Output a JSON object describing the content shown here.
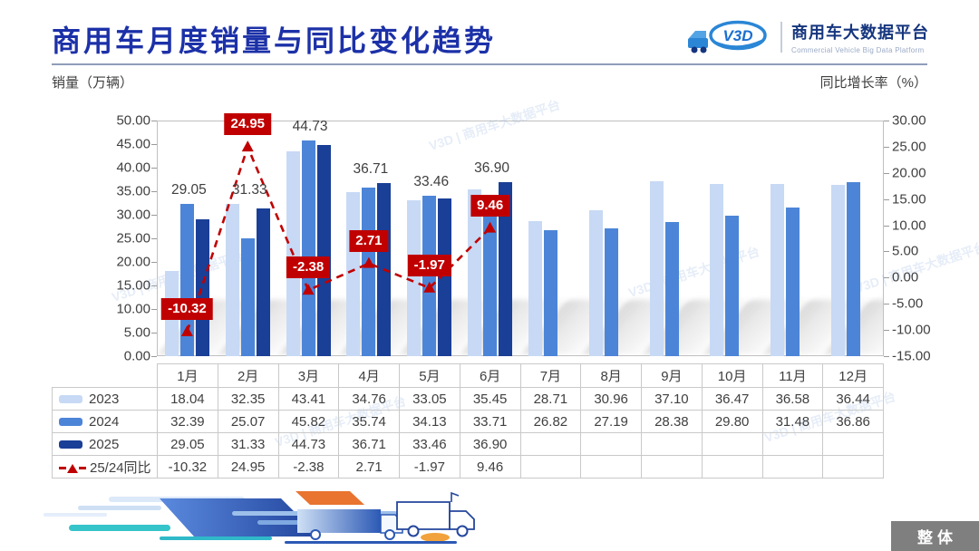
{
  "page": {
    "title": "商用车月度销量与同比变化趋势",
    "footer_badge": "整体"
  },
  "brand": {
    "logo_text": "V3D",
    "name_cn": "商用车大数据平台",
    "name_en": "Commercial Vehicle Big Data Platform"
  },
  "chart_data": {
    "type": "bar",
    "title": "商用车月度销量与同比变化趋势",
    "left_axis": {
      "label": "销量（万辆）",
      "min": 0,
      "max": 50,
      "step": 5
    },
    "right_axis": {
      "label": "同比增长率（%）",
      "min": -15,
      "max": 30,
      "step": 5
    },
    "categories": [
      "1月",
      "2月",
      "3月",
      "4月",
      "5月",
      "6月",
      "7月",
      "8月",
      "9月",
      "10月",
      "11月",
      "12月"
    ],
    "series": [
      {
        "name": "2023",
        "type": "bar",
        "color": "#c7d9f4",
        "values": [
          18.04,
          32.35,
          43.41,
          34.76,
          33.05,
          35.45,
          28.71,
          30.96,
          37.1,
          36.47,
          36.58,
          36.44
        ]
      },
      {
        "name": "2024",
        "type": "bar",
        "color": "#4c85d8",
        "values": [
          32.39,
          25.07,
          45.82,
          35.74,
          34.13,
          33.71,
          26.82,
          27.19,
          28.38,
          29.8,
          31.48,
          36.86
        ]
      },
      {
        "name": "2025",
        "type": "bar",
        "color": "#1a3f96",
        "data_labels": true,
        "values": [
          29.05,
          31.33,
          44.73,
          36.71,
          33.46,
          36.9,
          null,
          null,
          null,
          null,
          null,
          null
        ]
      },
      {
        "name": "25/24同比",
        "type": "line",
        "color": "#c00000",
        "data_labels": true,
        "values": [
          -10.32,
          24.95,
          -2.38,
          2.71,
          -1.97,
          9.46,
          null,
          null,
          null,
          null,
          null,
          null
        ]
      }
    ],
    "grid": false,
    "legend_position": "table-left"
  },
  "colors": {
    "title_blue": "#1c31a8",
    "accent_red": "#c00000",
    "badge_gray": "#7f7f7f"
  }
}
